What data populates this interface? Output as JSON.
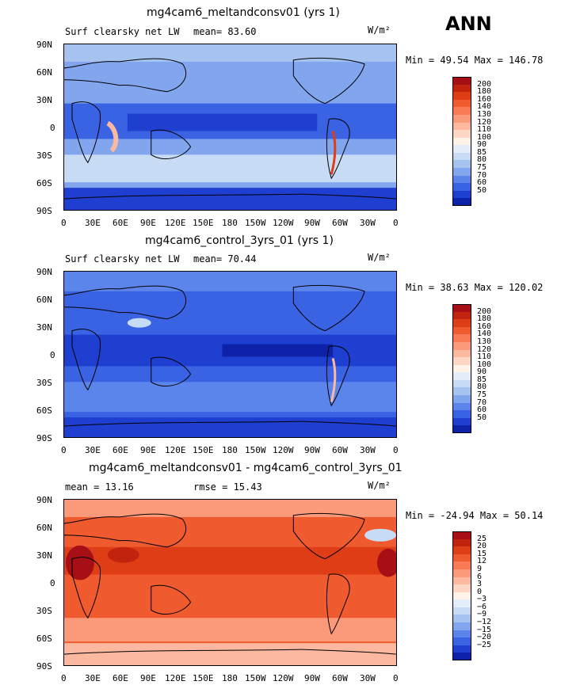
{
  "season": "ANN",
  "panels": [
    {
      "title": "mg4cam6_meltandconsv01 (yrs 1)",
      "left_label": "Surf clearsky net LW",
      "mid_label": "mean=  83.60",
      "units": "W/m²",
      "stats": "Min =  49.54 Max = 146.78"
    },
    {
      "title": "mg4cam6_control_3yrs_01 (yrs 1)",
      "left_label": "Surf clearsky net LW",
      "mid_label": "mean=  70.44",
      "units": "W/m²",
      "stats": "Min =  38.63 Max = 120.02"
    },
    {
      "title": "mg4cam6_meltandconsv01 - mg4cam6_control_3yrs_01",
      "left_label": "mean =   13.16",
      "mid_label": "rmse =   15.43",
      "units": "W/m²",
      "stats": "Min = -24.94 Max =  50.14"
    }
  ],
  "chart_data": [
    {
      "type": "heatmap",
      "title": "mg4cam6_meltandconsv01 (yrs 1)",
      "variable": "Surf clearsky net LW",
      "units": "W/m^2",
      "mean": 83.6,
      "min": 49.54,
      "max": 146.78,
      "x_ticks": [
        "0",
        "30E",
        "60E",
        "90E",
        "120E",
        "150E",
        "180",
        "150W",
        "120W",
        "90W",
        "60W",
        "30W",
        "0"
      ],
      "y_ticks": [
        "90N",
        "60N",
        "30N",
        "0",
        "30S",
        "60S",
        "90S"
      ],
      "colorbar_levels": [
        "200",
        "180",
        "160",
        "140",
        "130",
        "120",
        "110",
        "100",
        "90",
        "85",
        "80",
        "75",
        "70",
        "60",
        "50"
      ],
      "colors": [
        "#a50f15",
        "#c2230f",
        "#df3d16",
        "#ef5b2f",
        "#f87b55",
        "#fb9a7a",
        "#fcb99f",
        "#fdd7c4",
        "#fff2e6",
        "#e4eefa",
        "#c8dbf5",
        "#a6c3f0",
        "#82a6ee",
        "#5c85ec",
        "#3a63e3",
        "#1f3fd1",
        "#0d22a8"
      ]
    },
    {
      "type": "heatmap",
      "title": "mg4cam6_control_3yrs_01 (yrs 1)",
      "variable": "Surf clearsky net LW",
      "units": "W/m^2",
      "mean": 70.44,
      "min": 38.63,
      "max": 120.02,
      "x_ticks": [
        "0",
        "30E",
        "60E",
        "90E",
        "120E",
        "150E",
        "180",
        "150W",
        "120W",
        "90W",
        "60W",
        "30W",
        "0"
      ],
      "y_ticks": [
        "90N",
        "60N",
        "30N",
        "0",
        "30S",
        "60S",
        "90S"
      ],
      "colorbar_levels": [
        "200",
        "180",
        "160",
        "140",
        "130",
        "120",
        "110",
        "100",
        "90",
        "85",
        "80",
        "75",
        "70",
        "60",
        "50"
      ],
      "colors": [
        "#a50f15",
        "#c2230f",
        "#df3d16",
        "#ef5b2f",
        "#f87b55",
        "#fb9a7a",
        "#fcb99f",
        "#fdd7c4",
        "#fff2e6",
        "#e4eefa",
        "#c8dbf5",
        "#a6c3f0",
        "#82a6ee",
        "#5c85ec",
        "#3a63e3",
        "#1f3fd1",
        "#0d22a8"
      ]
    },
    {
      "type": "heatmap",
      "title": "mg4cam6_meltandconsv01 - mg4cam6_control_3yrs_01",
      "units": "W/m^2",
      "mean": 13.16,
      "rmse": 15.43,
      "min": -24.94,
      "max": 50.14,
      "x_ticks": [
        "0",
        "30E",
        "60E",
        "90E",
        "120E",
        "150E",
        "180",
        "150W",
        "120W",
        "90W",
        "60W",
        "30W",
        "0"
      ],
      "y_ticks": [
        "90N",
        "60N",
        "30N",
        "0",
        "30S",
        "60S",
        "90S"
      ],
      "colorbar_levels": [
        "25",
        "20",
        "15",
        "12",
        "9",
        "6",
        "3",
        "0",
        "−3",
        "−6",
        "−9",
        "−12",
        "−15",
        "−20",
        "−25"
      ],
      "colors": [
        "#a50f15",
        "#c2230f",
        "#df3d16",
        "#ef5b2f",
        "#f87b55",
        "#fb9a7a",
        "#fcb99f",
        "#fdd7c4",
        "#fff2e6",
        "#e4eefa",
        "#c8dbf5",
        "#a6c3f0",
        "#82a6ee",
        "#5c85ec",
        "#3a63e3",
        "#1f3fd1",
        "#0d22a8"
      ]
    }
  ]
}
